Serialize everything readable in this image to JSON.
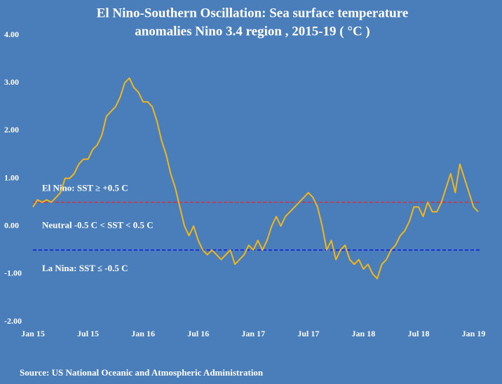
{
  "chart_data": {
    "type": "line",
    "title": [
      "El Nino-Southern Oscillation: Sea surface temperature",
      "anomalies Nino 3.4 region , 2015-19 ( °C )"
    ],
    "source": "Source: US National Oceanic and Atmospheric Administration",
    "color": "#f2b619",
    "xlim": [
      0,
      48.8
    ],
    "xticks": [
      {
        "value": 0,
        "label": "Jan 15"
      },
      {
        "value": 6,
        "label": "Jul 15"
      },
      {
        "value": 12,
        "label": "Jan 16"
      },
      {
        "value": 18,
        "label": "Jul 16"
      },
      {
        "value": 24,
        "label": "Jan 17"
      },
      {
        "value": 30,
        "label": "Jul 17"
      },
      {
        "value": 36,
        "label": "Jan 18"
      },
      {
        "value": 42,
        "label": "Jul 18"
      },
      {
        "value": 48,
        "label": "Jan 19"
      }
    ],
    "ylim": [
      -2,
      4
    ],
    "yticks": [
      {
        "value": -2,
        "label": "-2.00"
      },
      {
        "value": -1,
        "label": "-1.00"
      },
      {
        "value": 0,
        "label": "0.00"
      },
      {
        "value": 1,
        "label": "1.00"
      },
      {
        "value": 2,
        "label": "2.00"
      },
      {
        "value": 3,
        "label": "3.00"
      },
      {
        "value": 4,
        "label": "4.00"
      }
    ],
    "reference_lines": [
      {
        "value": 0.5,
        "color": "#ff2020"
      },
      {
        "value": -0.5,
        "color": "#1010ff"
      }
    ],
    "annotations": [
      {
        "text": "El Nino: SST ≥  +0.5 C",
        "y": 0.78
      },
      {
        "text": "Neutral  -0.5 C < SST < 0.5 C",
        "y": 0.0
      },
      {
        "text": "La Nina:  SST ≤ -0.5 C",
        "y": -0.9
      }
    ],
    "x": [
      0,
      0.5,
      1,
      1.5,
      2,
      2.5,
      3,
      3.5,
      4,
      4.5,
      5,
      5.5,
      6,
      6.5,
      7,
      7.5,
      8,
      8.5,
      9,
      9.5,
      10,
      10.5,
      11,
      11.5,
      12,
      12.5,
      13,
      13.5,
      14,
      14.5,
      15,
      15.5,
      16,
      16.5,
      17,
      17.5,
      18,
      18.5,
      19,
      19.5,
      20,
      20.5,
      21,
      21.5,
      22,
      22.5,
      23,
      23.5,
      24,
      24.5,
      25,
      25.5,
      26,
      26.5,
      27,
      27.5,
      28,
      28.5,
      29,
      29.5,
      30,
      30.5,
      31,
      31.5,
      32,
      32.5,
      33,
      33.5,
      34,
      34.5,
      35,
      35.5,
      36,
      36.5,
      37,
      37.5,
      38,
      38.5,
      39,
      39.5,
      40,
      40.5,
      41,
      41.5,
      42,
      42.5,
      43,
      43.5,
      44,
      44.5,
      45,
      45.5,
      46,
      46.5,
      47,
      47.5,
      48,
      48.5
    ],
    "values": [
      0.4,
      0.55,
      0.5,
      0.55,
      0.5,
      0.6,
      0.7,
      1.0,
      1.0,
      1.1,
      1.3,
      1.4,
      1.4,
      1.6,
      1.7,
      1.9,
      2.3,
      2.4,
      2.5,
      2.7,
      3.0,
      3.1,
      2.9,
      2.8,
      2.6,
      2.6,
      2.5,
      2.2,
      1.8,
      1.5,
      1.1,
      0.8,
      0.4,
      0.0,
      -0.2,
      0.0,
      -0.3,
      -0.5,
      -0.6,
      -0.5,
      -0.6,
      -0.7,
      -0.6,
      -0.5,
      -0.8,
      -0.7,
      -0.6,
      -0.4,
      -0.5,
      -0.3,
      -0.5,
      -0.3,
      0.0,
      0.2,
      0.0,
      0.2,
      0.3,
      0.4,
      0.5,
      0.6,
      0.7,
      0.6,
      0.4,
      0.0,
      -0.5,
      -0.3,
      -0.7,
      -0.5,
      -0.4,
      -0.7,
      -0.8,
      -0.7,
      -0.9,
      -0.8,
      -1.0,
      -1.1,
      -0.8,
      -0.7,
      -0.5,
      -0.4,
      -0.2,
      -0.1,
      0.1,
      0.4,
      0.4,
      0.2,
      0.5,
      0.3,
      0.3,
      0.5,
      0.8,
      1.1,
      0.7,
      1.3,
      1.0,
      0.7,
      0.4,
      0.3
    ]
  }
}
